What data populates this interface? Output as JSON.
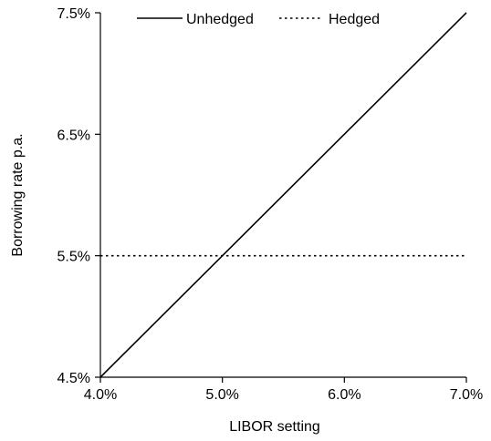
{
  "chart_data": {
    "type": "line",
    "title": "",
    "xlabel": "LIBOR setting",
    "ylabel": "Borrowing rate p.a.",
    "xlim": [
      4.0,
      7.0
    ],
    "ylim": [
      4.5,
      7.5
    ],
    "x_ticks": [
      4.0,
      5.0,
      6.0,
      7.0
    ],
    "x_tick_labels": [
      "4.0%",
      "5.0%",
      "6.0%",
      "7.0%"
    ],
    "y_ticks": [
      4.5,
      5.5,
      6.5,
      7.5
    ],
    "y_tick_labels": [
      "4.5%",
      "5.5%",
      "6.5%",
      "7.5%"
    ],
    "grid": false,
    "legend_position": "top",
    "series": [
      {
        "name": "Unhedged",
        "style": "solid",
        "color": "#000000",
        "x": [
          4.0,
          7.0
        ],
        "y": [
          4.5,
          7.5
        ]
      },
      {
        "name": "Hedged",
        "style": "dotted",
        "color": "#000000",
        "x": [
          4.0,
          7.0
        ],
        "y": [
          5.5,
          5.5
        ]
      }
    ]
  }
}
